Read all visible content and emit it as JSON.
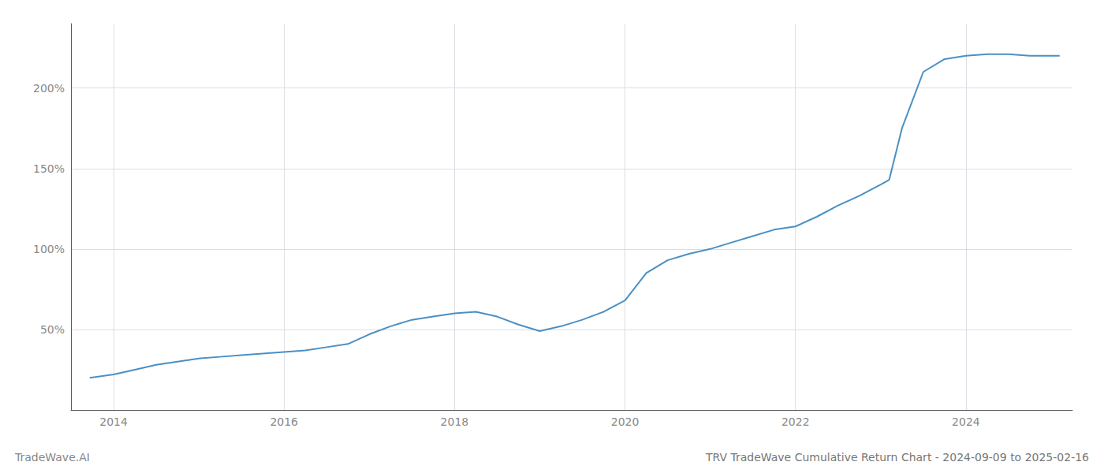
{
  "chart_data": {
    "type": "line",
    "title": "TRV TradeWave Cumulative Return Chart - 2024-09-09 to 2025-02-16",
    "annotations": [
      "TradeWave.AI"
    ],
    "x": [
      2013.72,
      2014.0,
      2014.25,
      2014.5,
      2014.75,
      2015.0,
      2015.25,
      2015.5,
      2015.75,
      2016.0,
      2016.25,
      2016.5,
      2016.75,
      2017.0,
      2017.25,
      2017.5,
      2017.75,
      2018.0,
      2018.25,
      2018.5,
      2018.75,
      2019.0,
      2019.25,
      2019.5,
      2019.75,
      2020.0,
      2020.25,
      2020.5,
      2020.75,
      2021.0,
      2021.25,
      2021.5,
      2021.75,
      2022.0,
      2022.25,
      2022.5,
      2022.75,
      2023.0,
      2023.1,
      2023.25,
      2023.5,
      2023.75,
      2024.0,
      2024.25,
      2024.5,
      2024.75,
      2025.1
    ],
    "values": [
      20,
      22,
      25,
      28,
      30,
      32,
      33,
      34,
      35,
      36,
      37,
      39,
      41,
      47,
      52,
      56,
      58,
      60,
      61,
      58,
      53,
      49,
      52,
      56,
      61,
      68,
      85,
      93,
      97,
      100,
      104,
      108,
      112,
      114,
      120,
      127,
      133,
      140,
      143,
      175,
      210,
      218,
      220,
      221,
      221,
      220,
      220
    ],
    "color": "#4a90c4",
    "xlim": [
      2013.5,
      2025.25
    ],
    "ylim": [
      0,
      240
    ],
    "xticks": [
      2014,
      2016,
      2018,
      2020,
      2022,
      2024
    ],
    "yticks": [
      {
        "value": 50,
        "label": "50%"
      },
      {
        "value": 100,
        "label": "100%"
      },
      {
        "value": 150,
        "label": "150%"
      },
      {
        "value": 200,
        "label": "200%"
      }
    ],
    "grid": true
  }
}
